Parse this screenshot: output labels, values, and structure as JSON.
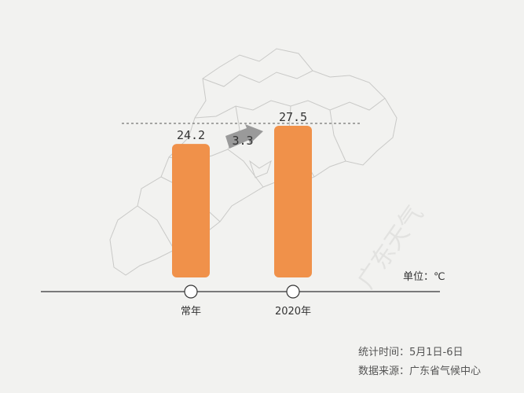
{
  "chart_data": {
    "type": "bar",
    "categories": [
      "常年",
      "2020年"
    ],
    "values": [
      24.2,
      27.5
    ],
    "value_labels": [
      "24.2",
      "27.5"
    ],
    "difference_label": "3.3",
    "unit_label": "单位：℃",
    "ylim": [
      0,
      28
    ],
    "bar_color": "#f0914a",
    "grid": false
  },
  "footer": {
    "period": "统计时间：5月1日-6日",
    "source": "数据来源：广东省气候中心"
  },
  "watermark": "广东天气"
}
